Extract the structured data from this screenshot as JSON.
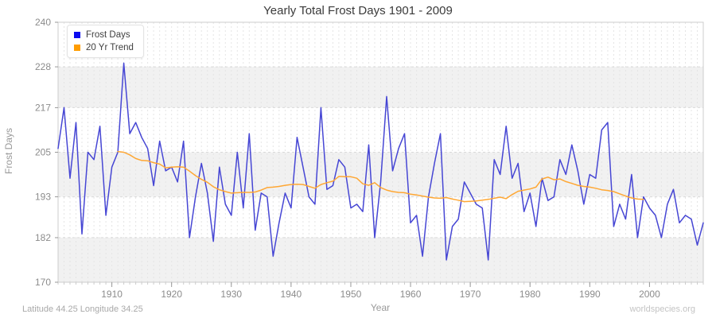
{
  "header": {
    "title": "Yearly Total Frost Days 1901 - 2009"
  },
  "axes": {
    "y_label": "Frost Days",
    "x_label": "Year"
  },
  "footer": {
    "left_text": "Latitude 44.25 Longitude 34.25",
    "right_text": "worldspecies.org"
  },
  "legend": {
    "items": [
      {
        "label": "Frost Days",
        "color": "#0b0bf0"
      },
      {
        "label": "20 Yr Trend",
        "color": "#ff9d00"
      }
    ]
  },
  "style": {
    "band_fill": "#f1f1f1",
    "band_fill_alt": "#ffffff",
    "h_grid_color": "#d9d9d9",
    "v_grid_color": "#e4e4e4",
    "border_color": "#cccccc",
    "tick_color": "#999999",
    "minor_tick_color": "#cccccc",
    "tick_label_color": "#8c8c8c"
  },
  "chart_data": {
    "type": "line",
    "title": "Yearly Total Frost Days 1901 - 2009",
    "xlabel": "Year",
    "ylabel": "Frost Days",
    "xlim": [
      1901,
      2009
    ],
    "ylim": [
      170,
      240
    ],
    "y_ticks": [
      170,
      182,
      193,
      205,
      217,
      228,
      240
    ],
    "x_ticks": [
      1910,
      1920,
      1930,
      1940,
      1950,
      1960,
      1970,
      1980,
      1990,
      2000
    ],
    "grid": "alternating horizontal bands, dashed horizontal gridlines, yearly dashed vertical gridlines",
    "legend_position": "top-left",
    "series": [
      {
        "name": "Frost Days",
        "color": "#4646d4",
        "x_start": 1901,
        "values": [
          206,
          217,
          198,
          213,
          183,
          205,
          203,
          212,
          188,
          201,
          205,
          229,
          210,
          213,
          209,
          206,
          196,
          208,
          200,
          201,
          197,
          208,
          182,
          193,
          202,
          194,
          181,
          201,
          191,
          188,
          205,
          190,
          210,
          184,
          194,
          193,
          177,
          186,
          194,
          190,
          209,
          201,
          193,
          191,
          217,
          195,
          196,
          203,
          201,
          190,
          191,
          189,
          207,
          182,
          197,
          220,
          200,
          206,
          210,
          186,
          188,
          177,
          193,
          202,
          210,
          176,
          185,
          187,
          197,
          194,
          191,
          190,
          176,
          203,
          199,
          212,
          198,
          202,
          189,
          194,
          185,
          198,
          192,
          193,
          203,
          199,
          207,
          200,
          191,
          199,
          198,
          211,
          213,
          185,
          191,
          187,
          199,
          182,
          193,
          190,
          188,
          182,
          191,
          195,
          186,
          188,
          187,
          180,
          186
        ]
      },
      {
        "name": "20 Yr Trend",
        "color": "#ffa733",
        "x_start": 1911,
        "values": [
          205.2,
          205.0,
          204.3,
          203.3,
          202.8,
          202.7,
          202.2,
          201.8,
          200.8,
          201.0,
          201.1,
          201.0,
          199.9,
          198.7,
          197.7,
          196.9,
          195.7,
          194.9,
          194.4,
          194.0,
          194.1,
          194.2,
          194.2,
          194.3,
          194.8,
          195.5,
          195.6,
          195.8,
          196.1,
          196.3,
          196.4,
          196.3,
          195.8,
          195.3,
          196.3,
          196.8,
          197.2,
          198.5,
          198.4,
          198.4,
          198.0,
          196.5,
          196.1,
          196.8,
          195.5,
          194.8,
          194.4,
          194.2,
          194.1,
          193.7,
          193.5,
          193.2,
          192.9,
          192.7,
          192.6,
          192.8,
          192.4,
          192.1,
          191.7,
          191.8,
          191.9,
          192.1,
          192.3,
          192.6,
          192.9,
          192.5,
          193.6,
          194.5,
          194.8,
          195.1,
          195.6,
          197.8,
          198.3,
          197.6,
          197.8,
          197.1,
          196.6,
          196.1,
          195.8,
          195.6,
          195.3,
          194.9,
          194.7,
          194.4,
          193.8,
          193.2,
          192.7,
          192.4,
          192.3
        ]
      }
    ]
  }
}
